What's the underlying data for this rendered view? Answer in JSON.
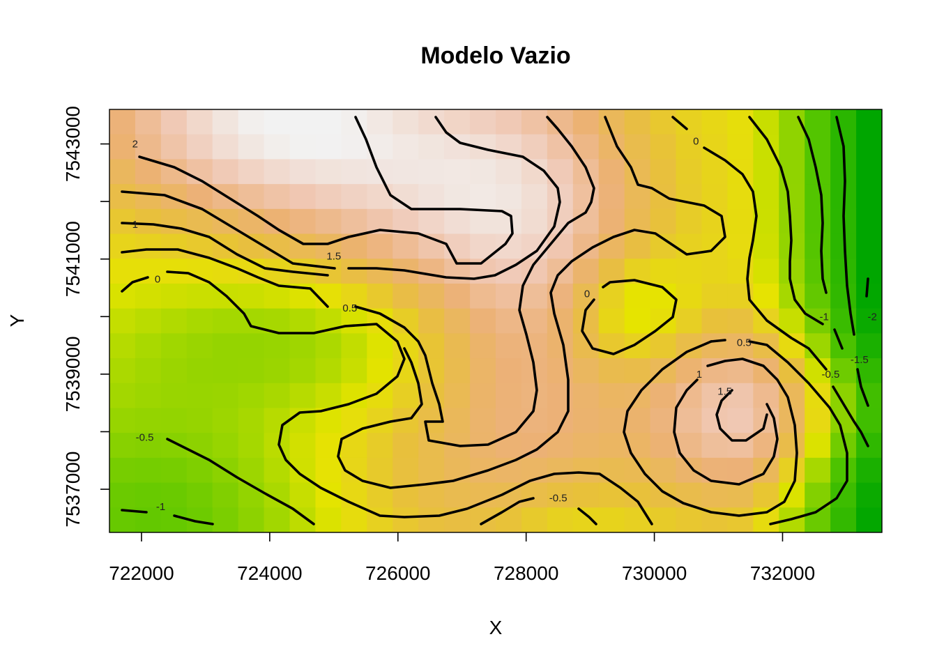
{
  "chart_data": {
    "type": "heatmap",
    "title": "Modelo Vazio",
    "xlabel": "X",
    "ylabel": "Y",
    "xlim": [
      721500,
      733550
    ],
    "ylim": [
      7536250,
      7543600
    ],
    "x_ticks": [
      722000,
      724000,
      726000,
      728000,
      730000,
      732000
    ],
    "x_tick_labels": [
      "722000",
      "724000",
      "726000",
      "728000",
      "730000",
      "732000"
    ],
    "y_ticks": [
      7537000,
      7538000,
      7539000,
      7540000,
      7541000,
      7542000,
      7543000
    ],
    "y_tick_labels": [
      "7537000",
      "7539000",
      "7541000",
      "7543000"
    ],
    "y_tick_labels_at": [
      7537000,
      7539000,
      7541000,
      7543000
    ],
    "grid": false,
    "legend": "none",
    "colors": {
      "low": "#00a600",
      "mid_low": "#a6d800",
      "mid": "#e6e400",
      "mid_high": "#ecb176",
      "high": "#f2f2f2"
    },
    "contour_levels": [
      -2,
      -1.5,
      -1,
      -0.5,
      0,
      0.5,
      1,
      1.5,
      2
    ],
    "contour_labels": [
      {
        "text": "2",
        "x": 721900,
        "y": 7543000
      },
      {
        "text": "1",
        "x": 721900,
        "y": 7541600
      },
      {
        "text": "0",
        "x": 722250,
        "y": 7540650
      },
      {
        "text": "1.5",
        "x": 725000,
        "y": 7541050
      },
      {
        "text": "0.5",
        "x": 725250,
        "y": 7540150
      },
      {
        "text": "-0.5",
        "x": 722050,
        "y": 7537900
      },
      {
        "text": "-1",
        "x": 722300,
        "y": 7536700
      },
      {
        "text": "0",
        "x": 730650,
        "y": 7543050
      },
      {
        "text": "0",
        "x": 728950,
        "y": 7540400
      },
      {
        "text": "0.5",
        "x": 731400,
        "y": 7539550
      },
      {
        "text": "1",
        "x": 730700,
        "y": 7539000
      },
      {
        "text": "1.5",
        "x": 731100,
        "y": 7538700
      },
      {
        "text": "-0.5",
        "x": 728500,
        "y": 7536850
      },
      {
        "text": "-1",
        "x": 732650,
        "y": 7540000
      },
      {
        "text": "-0.5",
        "x": 732750,
        "y": 7539000
      },
      {
        "text": "-1.5",
        "x": 733200,
        "y": 7539250
      },
      {
        "text": "-2",
        "x": 733400,
        "y": 7540000
      }
    ]
  }
}
